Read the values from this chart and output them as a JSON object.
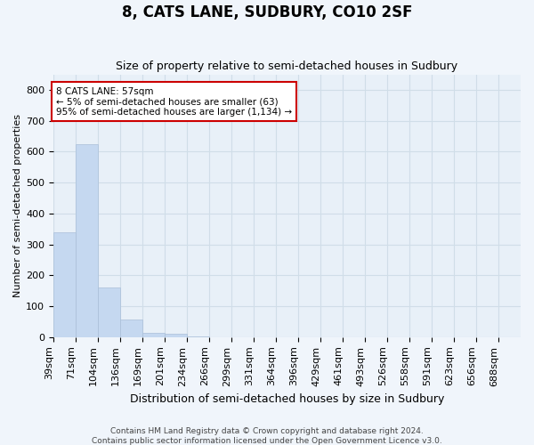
{
  "title": "8, CATS LANE, SUDBURY, CO10 2SF",
  "subtitle": "Size of property relative to semi-detached houses in Sudbury",
  "xlabel": "Distribution of semi-detached houses by size in Sudbury",
  "ylabel": "Number of semi-detached properties",
  "footer_line1": "Contains HM Land Registry data © Crown copyright and database right 2024.",
  "footer_line2": "Contains public sector information licensed under the Open Government Licence v3.0.",
  "bin_labels": [
    "39sqm",
    "71sqm",
    "104sqm",
    "136sqm",
    "169sqm",
    "201sqm",
    "234sqm",
    "266sqm",
    "299sqm",
    "331sqm",
    "364sqm",
    "396sqm",
    "429sqm",
    "461sqm",
    "493sqm",
    "526sqm",
    "558sqm",
    "591sqm",
    "623sqm",
    "656sqm",
    "688sqm"
  ],
  "bar_values": [
    340,
    625,
    160,
    57,
    15,
    10,
    3,
    0,
    0,
    0,
    0,
    0,
    0,
    0,
    0,
    0,
    0,
    0,
    0,
    0,
    0
  ],
  "bar_color": "#c5d8f0",
  "bar_edge_color": "#aabfd8",
  "grid_color": "#d0dde8",
  "background_color": "#f0f5fb",
  "plot_bg_color": "#e8f0f8",
  "ylim": [
    0,
    850
  ],
  "yticks": [
    0,
    100,
    200,
    300,
    400,
    500,
    600,
    700,
    800
  ],
  "annotation_line1": "8 CATS LANE: 57sqm",
  "annotation_line2": "← 5% of semi-detached houses are smaller (63)",
  "annotation_line3": "95% of semi-detached houses are larger (1,134) →",
  "red_line_color": "#cc0000",
  "annotation_box_facecolor": "#ffffff",
  "annotation_box_edgecolor": "#cc0000",
  "title_fontsize": 12,
  "subtitle_fontsize": 9,
  "xlabel_fontsize": 9,
  "ylabel_fontsize": 8,
  "tick_fontsize": 8,
  "footer_fontsize": 6.5
}
